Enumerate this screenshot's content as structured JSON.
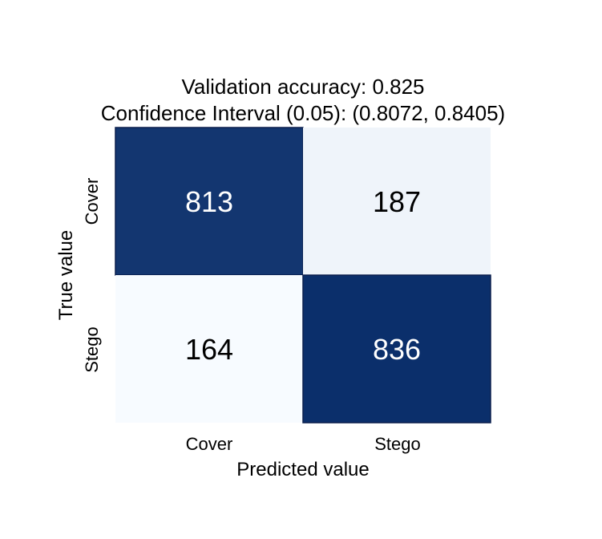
{
  "chart_data": {
    "type": "heatmap",
    "title_lines": [
      "Validation accuracy: 0.825",
      "Confidence Interval (0.05): (0.8072, 0.8405)"
    ],
    "xlabel": "Predicted value",
    "ylabel": "True value",
    "x_categories": [
      "Cover",
      "Stego"
    ],
    "y_categories": [
      "Cover",
      "Stego"
    ],
    "values": [
      [
        813,
        187
      ],
      [
        164,
        836
      ]
    ],
    "colormap": "Blues",
    "colors": {
      "low": "#f7fbff",
      "high": "#0b2f6b",
      "text_on_dark": "#ffffff",
      "text_on_light": "#000000",
      "cell_border": "#0b1f4d"
    }
  }
}
